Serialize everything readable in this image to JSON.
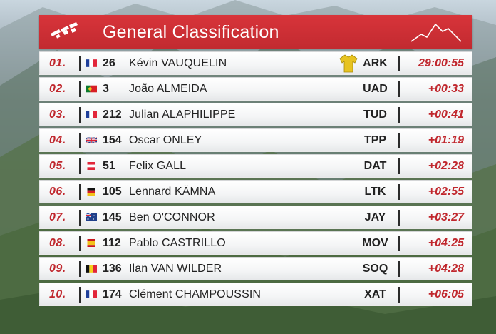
{
  "header": {
    "title": "General Classification",
    "accent_color": "#c8282e"
  },
  "rows": [
    {
      "position": "01.",
      "flag": "france",
      "bib": "26",
      "rider": "Kévin VAUQUELIN",
      "team": "ARK",
      "time": "29:00:55",
      "jersey": "yellow-jersey-icon"
    },
    {
      "position": "02.",
      "flag": "portugal",
      "bib": "3",
      "rider": "João ALMEIDA",
      "team": "UAD",
      "time": "+00:33"
    },
    {
      "position": "03.",
      "flag": "france",
      "bib": "212",
      "rider": "Julian ALAPHILIPPE",
      "team": "TUD",
      "time": "+00:41"
    },
    {
      "position": "04.",
      "flag": "united-kingdom",
      "bib": "154",
      "rider": "Oscar ONLEY",
      "team": "TPP",
      "time": "+01:19"
    },
    {
      "position": "05.",
      "flag": "austria",
      "bib": "51",
      "rider": "Felix GALL",
      "team": "DAT",
      "time": "+02:28"
    },
    {
      "position": "06.",
      "flag": "germany",
      "bib": "105",
      "rider": "Lennard KÄMNA",
      "team": "LTK",
      "time": "+02:55"
    },
    {
      "position": "07.",
      "flag": "australia",
      "bib": "145",
      "rider": "Ben O'CONNOR",
      "team": "JAY",
      "time": "+03:27"
    },
    {
      "position": "08.",
      "flag": "spain",
      "bib": "112",
      "rider": "Pablo CASTRILLO",
      "team": "MOV",
      "time": "+04:25"
    },
    {
      "position": "09.",
      "flag": "belgium",
      "bib": "136",
      "rider": "Ilan VAN WILDER",
      "team": "SOQ",
      "time": "+04:28"
    },
    {
      "position": "10.",
      "flag": "france",
      "bib": "174",
      "rider": "Clément CHAMPOUSSIN",
      "team": "XAT",
      "time": "+06:05"
    }
  ]
}
